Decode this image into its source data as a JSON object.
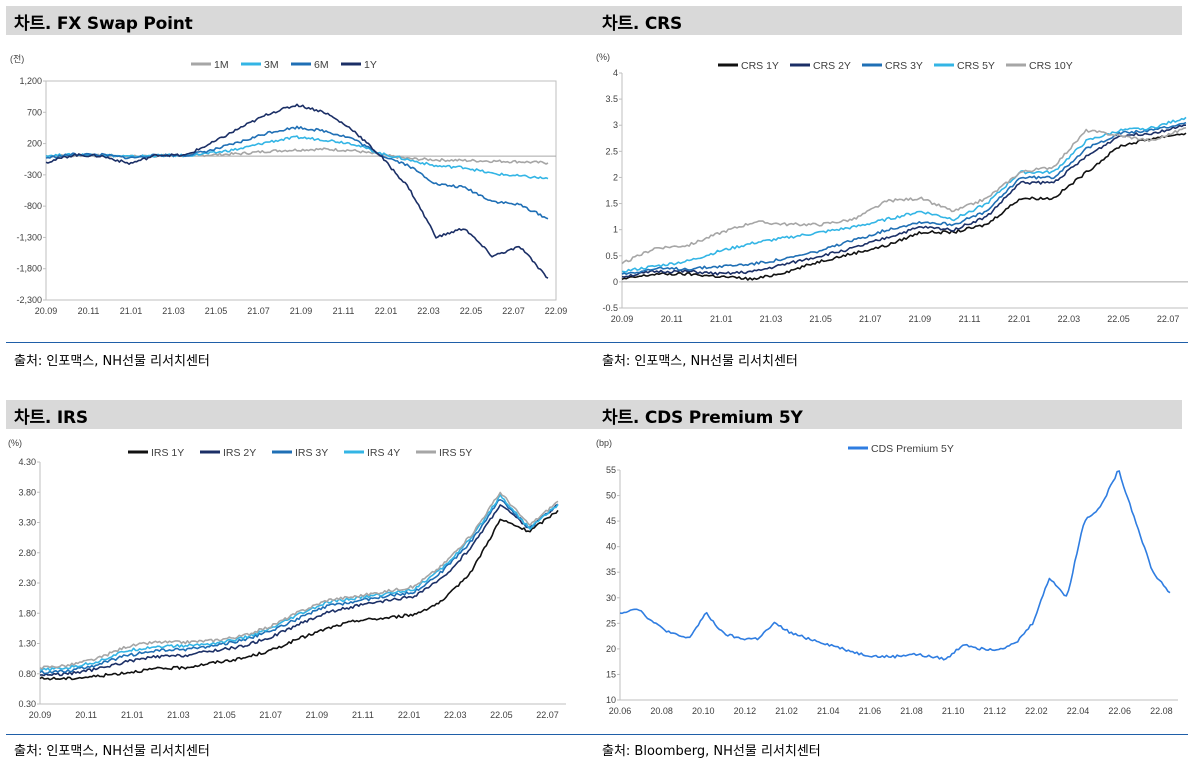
{
  "panels": [
    {
      "title": "차트. FX Swap Point",
      "source": "출처: 인포맥스, NH선물 리서치센터"
    },
    {
      "title": "차트. CRS",
      "source": "출처: 인포맥스, NH선물 리서치센터"
    },
    {
      "title": "차트. IRS",
      "source": "출처: 인포맥스, NH선물 리서치센터"
    },
    {
      "title": "차트. CDS Premium 5Y",
      "source": "출처: Bloomberg, NH선물 리서치센터"
    }
  ],
  "chart_data": [
    {
      "type": "line",
      "title": "",
      "unit": "(전)",
      "ylim": [
        -2300,
        1200
      ],
      "y_ticks": [
        "1,200",
        "700",
        "200",
        "-300",
        "-800",
        "-1,300",
        "-1,800",
        "-2,300"
      ],
      "y_tick_values": [
        1200,
        700,
        200,
        -300,
        -800,
        -1300,
        -1800,
        -2300
      ],
      "x_labels": [
        "20.09",
        "20.11",
        "21.01",
        "21.03",
        "21.05",
        "21.07",
        "21.09",
        "21.11",
        "22.01",
        "22.03",
        "22.05",
        "22.07",
        "22.09"
      ],
      "baseline": 0,
      "legend_position": "top",
      "series": [
        {
          "name": "1M",
          "color": "#a6a6a6",
          "values": [
            0,
            10,
            10,
            -5,
            5,
            10,
            20,
            40,
            80,
            100,
            110,
            90,
            20,
            -40,
            -60,
            -70,
            -80,
            -90,
            -110
          ]
        },
        {
          "name": "3M",
          "color": "#33b5e5",
          "values": [
            10,
            20,
            20,
            -10,
            10,
            10,
            50,
            120,
            230,
            300,
            260,
            200,
            40,
            -60,
            -160,
            -180,
            -280,
            -320,
            -360
          ]
        },
        {
          "name": "6M",
          "color": "#1f6fb5",
          "values": [
            -30,
            30,
            20,
            -30,
            15,
            10,
            100,
            230,
            380,
            460,
            400,
            280,
            20,
            -150,
            -450,
            -500,
            -720,
            -780,
            -1000
          ]
        },
        {
          "name": "1Y",
          "color": "#1b2f66",
          "values": [
            -100,
            20,
            0,
            -120,
            20,
            10,
            220,
            460,
            680,
            820,
            700,
            420,
            0,
            -500,
            -1300,
            -1150,
            -1600,
            -1450,
            -1950
          ]
        }
      ]
    },
    {
      "type": "line",
      "title": "",
      "unit": "(%)",
      "ylim": [
        -0.5,
        4
      ],
      "y_ticks": [
        "4",
        "3.5",
        "3",
        "2.5",
        "2",
        "1.5",
        "1",
        "0.5",
        "0",
        "-0.5"
      ],
      "y_tick_values": [
        4,
        3.5,
        3,
        2.5,
        2,
        1.5,
        1,
        0.5,
        0,
        -0.5
      ],
      "x_labels": [
        "20.09",
        "20.11",
        "21.01",
        "21.03",
        "21.05",
        "21.07",
        "21.09",
        "21.11",
        "22.01",
        "22.03",
        "22.05",
        "22.07"
      ],
      "baseline": 0,
      "legend_position": "top",
      "series": [
        {
          "name": "CRS 1Y",
          "color": "#111111",
          "values": [
            0.05,
            0.15,
            0.15,
            0.1,
            0.05,
            0.2,
            0.4,
            0.55,
            0.7,
            0.95,
            0.95,
            1.1,
            1.6,
            1.6,
            2.1,
            2.6,
            2.75,
            2.85
          ]
        },
        {
          "name": "CRS 2Y",
          "color": "#1b2f66",
          "values": [
            0.1,
            0.2,
            0.2,
            0.15,
            0.2,
            0.35,
            0.5,
            0.65,
            0.85,
            1.05,
            1.0,
            1.25,
            1.9,
            1.9,
            2.4,
            2.8,
            2.85,
            3.0
          ]
        },
        {
          "name": "CRS 3Y",
          "color": "#1f6fb5",
          "values": [
            0.15,
            0.25,
            0.25,
            0.3,
            0.35,
            0.45,
            0.6,
            0.8,
            1.0,
            1.15,
            1.1,
            1.35,
            2.0,
            2.0,
            2.55,
            2.85,
            2.9,
            3.05
          ]
        },
        {
          "name": "CRS 5Y",
          "color": "#33b5e5",
          "values": [
            0.2,
            0.3,
            0.4,
            0.6,
            0.75,
            0.85,
            0.95,
            1.05,
            1.2,
            1.35,
            1.2,
            1.5,
            2.1,
            2.1,
            2.7,
            2.9,
            2.95,
            3.15
          ]
        },
        {
          "name": "CRS 10Y",
          "color": "#a6a6a6",
          "values": [
            0.35,
            0.65,
            0.7,
            0.95,
            1.15,
            1.1,
            1.1,
            1.2,
            1.55,
            1.6,
            1.35,
            1.6,
            2.1,
            2.2,
            2.9,
            2.8,
            2.7,
            2.95
          ]
        }
      ]
    },
    {
      "type": "line",
      "title": "",
      "unit": "(%)",
      "ylim": [
        0.3,
        4.3
      ],
      "y_ticks": [
        "4.30",
        "3.80",
        "3.30",
        "2.80",
        "2.30",
        "1.80",
        "1.30",
        "0.80",
        "0.30"
      ],
      "y_tick_values": [
        4.3,
        3.8,
        3.3,
        2.8,
        2.3,
        1.8,
        1.3,
        0.8,
        0.3
      ],
      "x_labels": [
        "20.09",
        "20.11",
        "21.01",
        "21.03",
        "21.05",
        "21.07",
        "21.09",
        "21.11",
        "22.01",
        "22.03",
        "22.05",
        "22.07"
      ],
      "legend_position": "top",
      "series": [
        {
          "name": "IRS 1Y",
          "color": "#111111",
          "values": [
            0.72,
            0.72,
            0.76,
            0.82,
            0.88,
            0.9,
            0.98,
            1.05,
            1.18,
            1.38,
            1.55,
            1.68,
            1.72,
            1.78,
            2.0,
            2.5,
            3.35,
            3.15,
            3.5
          ]
        },
        {
          "name": "IRS 2Y",
          "color": "#1b2f66",
          "values": [
            0.78,
            0.8,
            0.88,
            1.0,
            1.08,
            1.1,
            1.18,
            1.25,
            1.4,
            1.62,
            1.82,
            1.92,
            2.0,
            2.08,
            2.38,
            2.9,
            3.6,
            3.2,
            3.6
          ]
        },
        {
          "name": "IRS 3Y",
          "color": "#1f6fb5",
          "values": [
            0.82,
            0.85,
            0.95,
            1.1,
            1.18,
            1.2,
            1.26,
            1.35,
            1.5,
            1.72,
            1.92,
            2.0,
            2.08,
            2.15,
            2.5,
            3.0,
            3.7,
            3.2,
            3.6
          ]
        },
        {
          "name": "IRS 4Y",
          "color": "#33b5e5",
          "values": [
            0.86,
            0.9,
            1.0,
            1.18,
            1.25,
            1.26,
            1.3,
            1.38,
            1.54,
            1.78,
            1.98,
            2.05,
            2.12,
            2.2,
            2.55,
            3.05,
            3.75,
            3.2,
            3.6
          ]
        },
        {
          "name": "IRS 5Y",
          "color": "#a6a6a6",
          "values": [
            0.9,
            0.94,
            1.05,
            1.25,
            1.32,
            1.32,
            1.35,
            1.42,
            1.58,
            1.82,
            2.02,
            2.08,
            2.16,
            2.24,
            2.6,
            3.1,
            3.8,
            3.25,
            3.65
          ]
        }
      ]
    },
    {
      "type": "line",
      "title": "CDS Premium 5Y",
      "unit": "(bp)",
      "ylim": [
        10,
        55
      ],
      "y_ticks": [
        "55",
        "50",
        "45",
        "40",
        "35",
        "30",
        "25",
        "20",
        "15",
        "10"
      ],
      "y_tick_values": [
        55,
        50,
        45,
        40,
        35,
        30,
        25,
        20,
        15,
        10
      ],
      "x_labels": [
        "20.06",
        "20.08",
        "20.10",
        "20.12",
        "21.02",
        "21.04",
        "21.06",
        "21.08",
        "21.10",
        "21.12",
        "22.02",
        "22.04",
        "22.06",
        "22.08"
      ],
      "legend_position": "top",
      "series": [
        {
          "name": "CDS Premium 5Y",
          "color": "#2f7de1",
          "values": [
            27,
            28,
            25,
            23,
            22,
            27,
            23,
            22,
            22,
            25,
            23,
            22,
            21,
            20,
            19,
            18.5,
            18.5,
            19,
            18.5,
            18,
            21,
            20,
            20,
            21,
            25,
            34,
            30,
            45,
            48,
            55,
            45,
            35,
            31
          ]
        }
      ]
    }
  ]
}
